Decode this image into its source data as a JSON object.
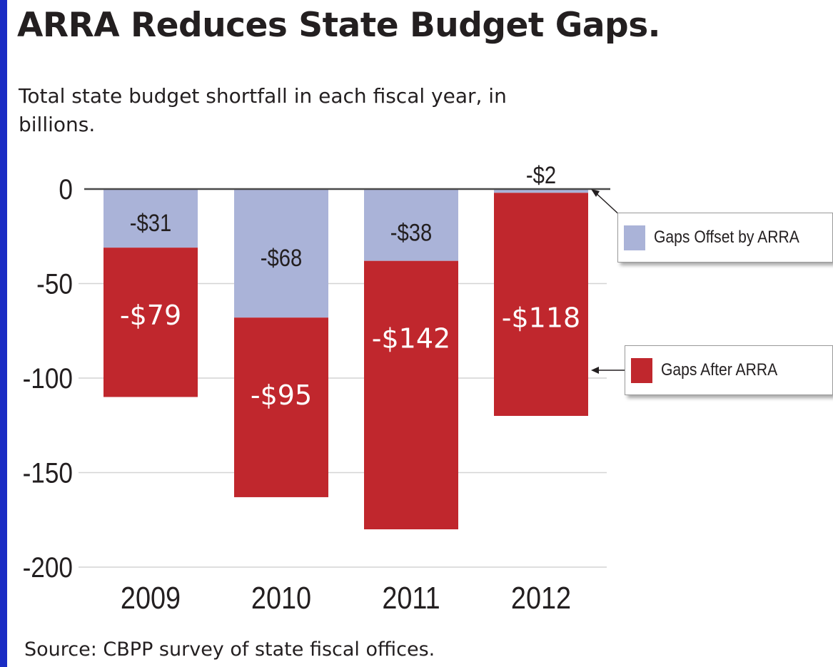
{
  "title": "ARRA Reduces State Budget Gaps.",
  "subtitle": "Total state budget shortfall in each fiscal year, in billions.",
  "source": "Source: CBPP survey of state fiscal offices.",
  "colors": {
    "offset": "#aab3d8",
    "after": "#c0272d",
    "frame": "#1a2cc4"
  },
  "legend": {
    "offset_label": "Gaps Offset by ARRA",
    "after_label": "Gaps After ARRA"
  },
  "chart_data": {
    "type": "bar",
    "stacked": true,
    "title": "ARRA Reduces State Budget Gaps.",
    "subtitle": "Total state budget shortfall in each fiscal year, in billions.",
    "xlabel": "",
    "ylabel": "",
    "categories": [
      "2009",
      "2010",
      "2011",
      "2012"
    ],
    "series": [
      {
        "name": "Gaps Offset by ARRA",
        "values": [
          -31,
          -68,
          -38,
          -2
        ],
        "labels": [
          "-$31",
          "-$68",
          "-$38",
          "-$2"
        ],
        "color": "#aab3d8"
      },
      {
        "name": "Gaps After ARRA",
        "values": [
          -79,
          -95,
          -142,
          -118
        ],
        "labels": [
          "-$79",
          "-$95",
          "-$142",
          "-$118"
        ],
        "color": "#c0272d"
      }
    ],
    "ylim": [
      -200,
      0
    ],
    "yticks": [
      0,
      -50,
      -100,
      -150,
      -200
    ],
    "ytick_labels": [
      "0",
      "-50",
      "-100",
      "-150",
      "-200"
    ],
    "grid": true,
    "legend_position": "right"
  }
}
